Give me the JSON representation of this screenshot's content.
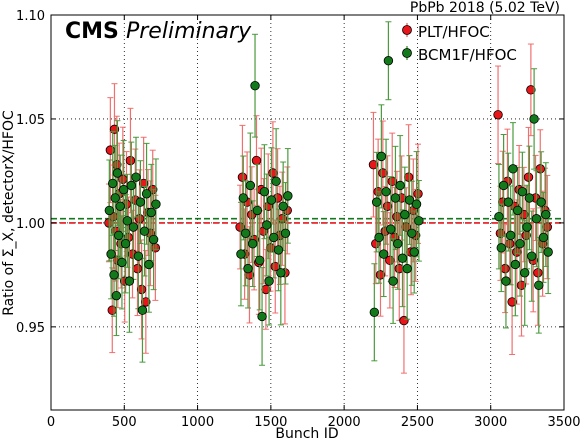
{
  "chart_data": {
    "type": "scatter",
    "experiment": "CMS",
    "status": "Preliminary",
    "header_right": "PbPb 2018 (5.02 TeV)",
    "xlabel": "Bunch ID",
    "ylabel": "Ratio of Σ_X, detectorX/HFOC",
    "xlim": [
      0,
      3500
    ],
    "ylim": [
      0.91,
      1.1
    ],
    "x_ticks": [
      0,
      500,
      1000,
      1500,
      2000,
      2500,
      3000,
      3500
    ],
    "x_tick_labels": [
      "0",
      "500",
      "1000",
      "1500",
      "2000",
      "2500",
      "3000",
      "3500"
    ],
    "y_ticks": [
      0.95,
      1.0,
      1.05,
      1.1
    ],
    "y_tick_labels": [
      "0.95",
      "1.00",
      "1.05",
      "1.10"
    ],
    "grid": true,
    "grid_style": "dotted",
    "legend_position": "top-right",
    "series": [
      {
        "name": "PLT/HFOC",
        "color": "#e8151b",
        "errorbar_color": "#f07070",
        "mean_line": 1.0,
        "points": [
          [
            395,
            1.0
          ],
          [
            405,
            1.035
          ],
          [
            418,
            0.958
          ],
          [
            425,
            1.003
          ],
          [
            433,
            1.045
          ],
          [
            441,
            0.996
          ],
          [
            449,
            1.028
          ],
          [
            456,
            0.982
          ],
          [
            465,
            1.014
          ],
          [
            478,
            0.99
          ],
          [
            490,
            1.021
          ],
          [
            503,
            0.972
          ],
          [
            515,
            1.009
          ],
          [
            528,
            0.993
          ],
          [
            542,
            1.03
          ],
          [
            556,
            0.985
          ],
          [
            575,
            1.011
          ],
          [
            590,
            0.978
          ],
          [
            604,
            1.002
          ],
          [
            618,
            0.968
          ],
          [
            632,
            1.019
          ],
          [
            647,
            0.962
          ],
          [
            662,
            1.005
          ],
          [
            678,
            0.995
          ],
          [
            694,
            1.016
          ],
          [
            712,
            0.988
          ],
          [
            1290,
            0.998
          ],
          [
            1306,
            1.022
          ],
          [
            1321,
            0.985
          ],
          [
            1338,
            1.01
          ],
          [
            1354,
            0.975
          ],
          [
            1370,
            1.004
          ],
          [
            1386,
            0.992
          ],
          [
            1402,
            1.03
          ],
          [
            1418,
            0.981
          ],
          [
            1434,
            1.016
          ],
          [
            1450,
            0.996
          ],
          [
            1466,
            0.968
          ],
          [
            1482,
            1.008
          ],
          [
            1498,
            0.988
          ],
          [
            1514,
            1.024
          ],
          [
            1530,
            0.979
          ],
          [
            1546,
            1.012
          ],
          [
            1562,
            0.994
          ],
          [
            1578,
            1.002
          ],
          [
            1596,
            0.976
          ],
          [
            1612,
            1.006
          ],
          [
            2200,
            1.028
          ],
          [
            2216,
            0.99
          ],
          [
            2232,
            1.015
          ],
          [
            2248,
            0.975
          ],
          [
            2264,
            1.024
          ],
          [
            2280,
            0.996
          ],
          [
            2296,
            1.008
          ],
          [
            2312,
            0.982
          ],
          [
            2328,
            1.02
          ],
          [
            2344,
            0.993
          ],
          [
            2360,
            1.003
          ],
          [
            2376,
            0.978
          ],
          [
            2392,
            1.012
          ],
          [
            2408,
            0.953
          ],
          [
            2424,
            0.998
          ],
          [
            2440,
            1.022
          ],
          [
            2456,
            0.986
          ],
          [
            2472,
            1.006
          ],
          [
            2488,
            0.994
          ],
          [
            2504,
            1.014
          ],
          [
            3050,
            1.052
          ],
          [
            3066,
            0.995
          ],
          [
            3082,
            1.01
          ],
          [
            3098,
            0.978
          ],
          [
            3114,
            1.02
          ],
          [
            3130,
            0.99
          ],
          [
            3146,
            0.962
          ],
          [
            3162,
            1.008
          ],
          [
            3178,
            0.986
          ],
          [
            3194,
            1.016
          ],
          [
            3210,
            0.97
          ],
          [
            3226,
            1.004
          ],
          [
            3242,
            0.994
          ],
          [
            3258,
            1.022
          ],
          [
            3274,
            1.064
          ],
          [
            3290,
            0.982
          ],
          [
            3306,
            1.012
          ],
          [
            3322,
            0.976
          ],
          [
            3338,
            1.026
          ],
          [
            3354,
            0.99
          ],
          [
            3370,
            1.006
          ],
          [
            3386,
            0.998
          ]
        ]
      },
      {
        "name": "BCM1F/HFOC",
        "color": "#137a1c",
        "errorbar_color": "#4a9a3e",
        "mean_line": 1.002,
        "points": [
          [
            398,
            1.006
          ],
          [
            410,
            0.985
          ],
          [
            421,
            1.019
          ],
          [
            430,
            0.975
          ],
          [
            438,
            1.012
          ],
          [
            446,
            0.965
          ],
          [
            453,
            1.024
          ],
          [
            462,
            0.994
          ],
          [
            472,
            1.008
          ],
          [
            484,
            0.981
          ],
          [
            496,
            1.016
          ],
          [
            509,
            0.99
          ],
          [
            521,
            1.001
          ],
          [
            535,
            0.972
          ],
          [
            548,
            1.018
          ],
          [
            562,
            0.998
          ],
          [
            580,
            1.022
          ],
          [
            596,
            0.984
          ],
          [
            610,
            1.01
          ],
          [
            624,
            0.958
          ],
          [
            638,
            0.996
          ],
          [
            652,
            1.014
          ],
          [
            668,
            0.98
          ],
          [
            684,
            1.005
          ],
          [
            700,
            0.992
          ],
          [
            716,
            1.009
          ],
          [
            1296,
            0.985
          ],
          [
            1312,
            1.012
          ],
          [
            1328,
            0.995
          ],
          [
            1344,
            0.978
          ],
          [
            1360,
            1.018
          ],
          [
            1376,
            0.99
          ],
          [
            1392,
            1.066
          ],
          [
            1408,
            1.006
          ],
          [
            1424,
            0.982
          ],
          [
            1440,
            0.955
          ],
          [
            1456,
            1.015
          ],
          [
            1472,
            0.999
          ],
          [
            1488,
            0.972
          ],
          [
            1504,
            1.011
          ],
          [
            1520,
            0.993
          ],
          [
            1536,
            1.02
          ],
          [
            1552,
            0.987
          ],
          [
            1568,
            0.976
          ],
          [
            1584,
            1.008
          ],
          [
            1600,
            0.995
          ],
          [
            1616,
            1.013
          ],
          [
            2206,
            0.957
          ],
          [
            2222,
            1.01
          ],
          [
            2238,
            0.993
          ],
          [
            2254,
            1.032
          ],
          [
            2270,
            0.985
          ],
          [
            2286,
            1.015
          ],
          [
            2302,
            1.078
          ],
          [
            2318,
            0.997
          ],
          [
            2334,
            0.972
          ],
          [
            2350,
            1.012
          ],
          [
            2366,
            0.99
          ],
          [
            2382,
            1.018
          ],
          [
            2398,
            0.983
          ],
          [
            2414,
            1.004
          ],
          [
            2430,
            0.978
          ],
          [
            2446,
            1.011
          ],
          [
            2462,
            0.995
          ],
          [
            2478,
            0.986
          ],
          [
            2494,
            1.009
          ],
          [
            2510,
            1.001
          ],
          [
            3056,
            1.003
          ],
          [
            3072,
            0.988
          ],
          [
            3088,
            1.018
          ],
          [
            3104,
            0.972
          ],
          [
            3120,
            1.01
          ],
          [
            3136,
            0.994
          ],
          [
            3152,
            1.026
          ],
          [
            3168,
            0.98
          ],
          [
            3184,
            1.006
          ],
          [
            3200,
            0.99
          ],
          [
            3216,
            1.015
          ],
          [
            3232,
            0.976
          ],
          [
            3248,
            0.998
          ],
          [
            3264,
            1.012
          ],
          [
            3280,
            0.984
          ],
          [
            3296,
            1.05
          ],
          [
            3312,
            1.002
          ],
          [
            3328,
            0.97
          ],
          [
            3344,
            1.01
          ],
          [
            3360,
            0.993
          ],
          [
            3376,
            1.004
          ],
          [
            3392,
            0.986
          ]
        ]
      }
    ]
  }
}
